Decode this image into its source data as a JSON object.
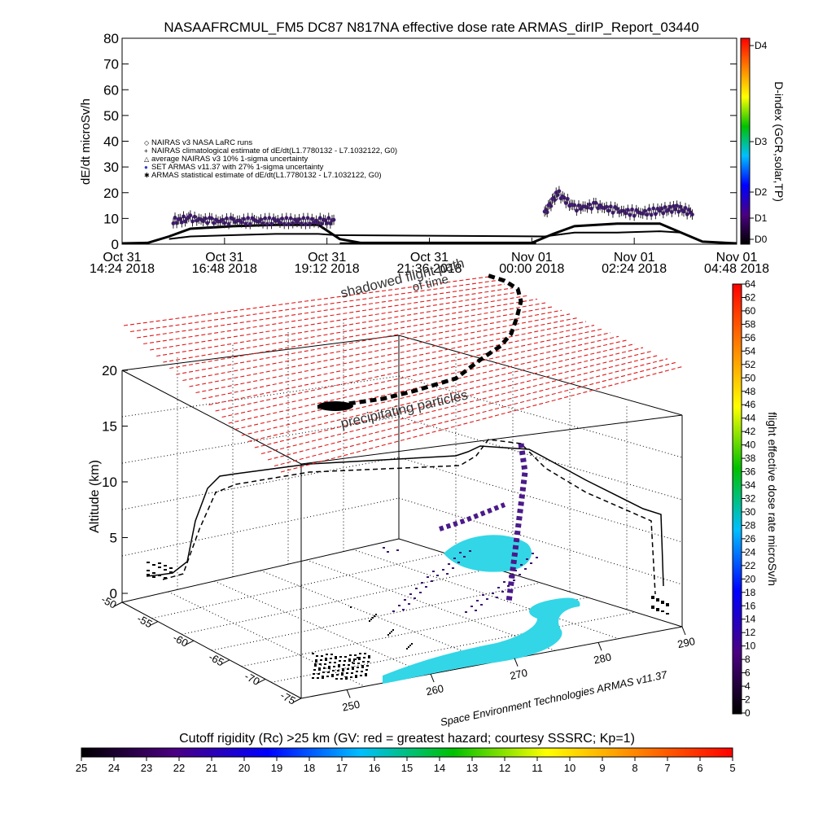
{
  "chart_data": [
    {
      "type": "scatter",
      "title": "NASAAFRCMUL_FM5 DC87 N817NA effective dose rate ARMAS_dirIP_Report_03440",
      "ylabel": "dE/dt microSv/h",
      "ylim": [
        0,
        80
      ],
      "yticks": [
        "0",
        "10",
        "20",
        "30",
        "40",
        "50",
        "60",
        "70",
        "80"
      ],
      "xticks": [
        {
          "line1": "Oct 31",
          "line2": "14:24 2018"
        },
        {
          "line1": "Oct 31",
          "line2": "16:48 2018"
        },
        {
          "line1": "Oct 31",
          "line2": "19:12 2018"
        },
        {
          "line1": "Oct 31",
          "line2": "21:36 2018"
        },
        {
          "line1": "Nov 01",
          "line2": "00:00 2018"
        },
        {
          "line1": "Nov 01",
          "line2": "02:24 2018"
        },
        {
          "line1": "Nov 01",
          "line2": "04:48 2018"
        }
      ],
      "xlim_hours": [
        14.4,
        28.8
      ],
      "legend": [
        "NAIRAS v3 NASA LaRC runs",
        "NAIRAS climatological estimate of dE/dt(L1.7780132 - L7.1032122, G0)",
        "average NAIRAS v3 10% 1-sigma uncertainty",
        "SET ARMAS v11.37 with 27% 1-sigma uncertainty",
        "ARMAS statistical estimate of dE/dt(L1.7780132 - L7.1032122, G0)"
      ],
      "legend_placement": "upper-left",
      "series": [
        {
          "name": "SET ARMAS v11.37 with 27% 1-sigma uncertainty",
          "type": "scatter",
          "x": [
            15.6,
            16.0,
            16.5,
            17.0,
            17.5,
            18.0,
            18.5,
            19.0,
            19.4
          ],
          "y": [
            9,
            10,
            9,
            9,
            9,
            9,
            9,
            9,
            9
          ]
        },
        {
          "name": "NAIRAS climatological estimate of dE/dt(L1.7780132 - L7.1032122, G0)",
          "type": "line",
          "x": [
            14.4,
            15.0,
            15.5,
            16.0,
            17.0,
            18.0,
            19.0,
            19.5,
            20.0,
            22.0,
            24.0,
            24.5,
            25.0,
            26.0,
            27.0,
            28.0,
            28.8
          ],
          "y": [
            0.3,
            0.5,
            3,
            6,
            7,
            7.5,
            7.5,
            2,
            0.5,
            0.5,
            0.5,
            4,
            7,
            8,
            8,
            1,
            0.3
          ]
        },
        {
          "name": "ARMAS statistical estimate of dE/dt(L1.7780132 - L7.1032122, G0)",
          "type": "line",
          "x": [
            15.5,
            16.0,
            17.0,
            18.0,
            19.0,
            19.4,
            24.3,
            25.0,
            26.0,
            27.0,
            27.5
          ],
          "y": [
            2,
            3,
            3.5,
            4,
            4,
            3.5,
            3,
            4.5,
            4.5,
            5,
            4.5
          ]
        },
        {
          "name": "SET ARMAS v11.37 with 27% 1-sigma uncertainty",
          "type": "scatter",
          "x": [
            24.3,
            24.6,
            25.0,
            25.5,
            26.0,
            26.5,
            27.0,
            27.4,
            27.8
          ],
          "y": [
            12,
            20,
            14,
            15,
            13,
            12,
            13,
            14,
            12
          ]
        }
      ],
      "colorbar": {
        "label": "D-index (GCR,solar,TP)",
        "tick_labels": [
          "D0",
          "D1",
          "D2",
          "D3",
          "D4"
        ],
        "stops": [
          "#000000",
          "#4b0082",
          "#0000ff",
          "#00bfff",
          "#00c000",
          "#ffff00",
          "#ff8000",
          "#ff0000"
        ]
      }
    },
    {
      "type": "scatter",
      "ylabel": "Altitude (km)",
      "zticks": [
        "0",
        "5",
        "10",
        "15",
        "20"
      ],
      "lat_ticks": [
        "-50",
        "-55",
        "-60",
        "-65",
        "-70",
        "-75"
      ],
      "lon_ticks": [
        "250",
        "260",
        "270",
        "280",
        "290"
      ],
      "annotations": [
        "shadowed flight path",
        "of time",
        "precipitating particles"
      ],
      "credit": "Space Environment Technologies ARMAS v11.37",
      "colorbar": {
        "label": "flight effective dose rate microSv/h",
        "range": [
          0,
          64
        ],
        "tick_labels": [
          "0",
          "2",
          "4",
          "6",
          "8",
          "10",
          "12",
          "14",
          "16",
          "18",
          "20",
          "22",
          "24",
          "26",
          "28",
          "30",
          "32",
          "34",
          "36",
          "38",
          "40",
          "42",
          "44",
          "46",
          "48",
          "50",
          "52",
          "54",
          "56",
          "58",
          "60",
          "62",
          "64"
        ],
        "stops": [
          "#000000",
          "#4b0082",
          "#0000ff",
          "#00bfff",
          "#00c000",
          "#ffff00",
          "#ff8000",
          "#ff0000"
        ]
      }
    },
    {
      "type": "heatmap",
      "title": "Cutoff rigidity (Rc) >25 km (GV: red = greatest hazard; courtesy SSSRC; Kp=1)",
      "colorbar": {
        "tick_labels": [
          "25",
          "24",
          "23",
          "22",
          "21",
          "20",
          "19",
          "18",
          "17",
          "16",
          "15",
          "14",
          "13",
          "12",
          "11",
          "10",
          "9",
          "8",
          "7",
          "6",
          "5"
        ],
        "stops": [
          "#000000",
          "#4b0082",
          "#0000ff",
          "#00bfff",
          "#00c000",
          "#ffff00",
          "#ff8000",
          "#ff0000"
        ]
      }
    }
  ]
}
